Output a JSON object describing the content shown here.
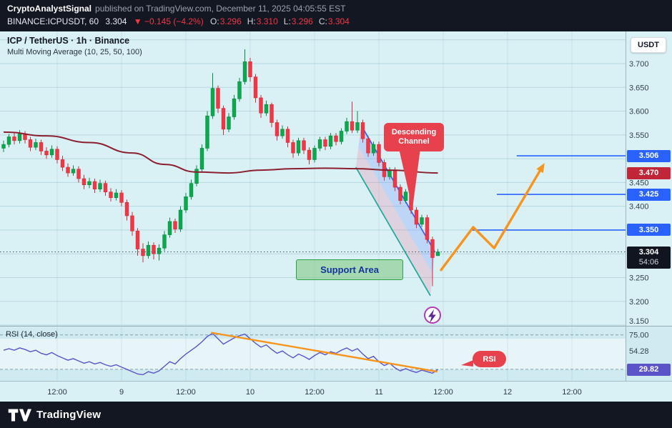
{
  "header": {
    "author": "CryptoAnalystSignal",
    "published_text": "published on TradingView.com, December 11, 2025 04:05:55 EST",
    "symbol": "BINANCE:ICPUSDT, 60",
    "last_price": "3.304",
    "change": "▼ −0.145 (−4.2%)",
    "ohlc": [
      {
        "label": "O",
        "value": "3.296"
      },
      {
        "label": "H",
        "value": "3.310"
      },
      {
        "label": "L",
        "value": "3.296"
      },
      {
        "label": "C",
        "value": "3.304"
      }
    ]
  },
  "legend": {
    "title": "ICP / TetherUS · 1h · Binance",
    "indicator": "Multi Moving Average (10, 25, 50, 100)"
  },
  "price_scale": {
    "currency_button": "USDT",
    "ticks": [
      "3.700",
      "3.650",
      "3.600",
      "3.550",
      "3.450",
      "3.400",
      "3.250",
      "3.200",
      "3.150"
    ],
    "flags": [
      {
        "name": "level-3506",
        "text": "3.506",
        "price": 3.506,
        "bg": "#2962ff"
      },
      {
        "name": "ma-value",
        "text": "3.470",
        "price": 3.47,
        "bg": "#c02638"
      },
      {
        "name": "level-3425",
        "text": "3.425",
        "price": 3.425,
        "bg": "#2962ff"
      },
      {
        "name": "level-3350",
        "text": "3.350",
        "price": 3.35,
        "bg": "#2962ff"
      },
      {
        "name": "last-price",
        "text": "3.304",
        "price": 3.304,
        "bg": "#10151f",
        "countdown": "54:06"
      }
    ]
  },
  "annotations": {
    "channel_label_line1": "Descending",
    "channel_label_line2": "Channel",
    "support_label": "Support Area",
    "rsi_flag": "RSI"
  },
  "rsi_pane": {
    "legend": "RSI (14, close)",
    "ticks": [
      {
        "text": "75.00",
        "value": 75
      },
      {
        "text": "54.28",
        "value": 54.28
      }
    ],
    "current": {
      "text": "29.82",
      "value": 29.82
    }
  },
  "time_axis": [
    "12:00",
    "9",
    "12:00",
    "10",
    "12:00",
    "11",
    "12:00",
    "12",
    "12:00"
  ],
  "footer": {
    "brand": "TradingView"
  },
  "colors": {
    "up": "#0ba94e",
    "up_border": "#078a42",
    "down": "#f23645",
    "down_border": "#cf2b39",
    "ma": "#8c1f2f",
    "level": "#2962ff",
    "orange": "#f7941d",
    "rsi_line": "#5b54c8",
    "channel_upper": "#2962ff",
    "channel_lower": "#1fa89a",
    "callout_red": "#e8414e"
  },
  "chart_data": {
    "type": "candlestick",
    "title": "ICP / TetherUS · 1h · Binance",
    "indicator": "Multi Moving Average (10, 25, 50, 100)",
    "price_axis_range": [
      3.135,
      3.768
    ],
    "grid_step": 0.05,
    "time_ticks": [
      "12:00",
      "9",
      "12:00",
      "10",
      "12:00",
      "11",
      "12:00",
      "12",
      "12:00"
    ],
    "current_price": 3.304,
    "countdown": "54:06",
    "candles_ohlc": [
      [
        3.522,
        3.538,
        3.514,
        3.53
      ],
      [
        3.53,
        3.552,
        3.524,
        3.546
      ],
      [
        3.546,
        3.554,
        3.53,
        3.538
      ],
      [
        3.538,
        3.56,
        3.532,
        3.552
      ],
      [
        3.552,
        3.558,
        3.532,
        3.54
      ],
      [
        3.54,
        3.546,
        3.516,
        3.524
      ],
      [
        3.524,
        3.542,
        3.518,
        3.534
      ],
      [
        3.534,
        3.54,
        3.508,
        3.516
      ],
      [
        3.516,
        3.524,
        3.5,
        3.508
      ],
      [
        3.508,
        3.528,
        3.502,
        3.52
      ],
      [
        3.52,
        3.526,
        3.49,
        3.498
      ],
      [
        3.498,
        3.506,
        3.474,
        3.482
      ],
      [
        3.482,
        3.49,
        3.462,
        3.47
      ],
      [
        3.47,
        3.486,
        3.464,
        3.478
      ],
      [
        3.478,
        3.484,
        3.45,
        3.458
      ],
      [
        3.458,
        3.466,
        3.436,
        3.445
      ],
      [
        3.445,
        3.46,
        3.438,
        3.452
      ],
      [
        3.452,
        3.458,
        3.428,
        3.436
      ],
      [
        3.436,
        3.456,
        3.43,
        3.448
      ],
      [
        3.448,
        3.454,
        3.422,
        3.43
      ],
      [
        3.43,
        3.438,
        3.41,
        3.418
      ],
      [
        3.418,
        3.436,
        3.412,
        3.428
      ],
      [
        3.428,
        3.434,
        3.4,
        3.408
      ],
      [
        3.408,
        3.414,
        3.37,
        3.38
      ],
      [
        3.38,
        3.388,
        3.338,
        3.348
      ],
      [
        3.348,
        3.354,
        3.296,
        3.31
      ],
      [
        3.31,
        3.322,
        3.282,
        3.296
      ],
      [
        3.296,
        3.326,
        3.29,
        3.318
      ],
      [
        3.318,
        3.324,
        3.288,
        3.3
      ],
      [
        3.3,
        3.32,
        3.286,
        3.312
      ],
      [
        3.312,
        3.348,
        3.306,
        3.34
      ],
      [
        3.34,
        3.376,
        3.334,
        3.368
      ],
      [
        3.368,
        3.374,
        3.344,
        3.352
      ],
      [
        3.352,
        3.4,
        3.346,
        3.392
      ],
      [
        3.392,
        3.428,
        3.386,
        3.42
      ],
      [
        3.42,
        3.456,
        3.414,
        3.448
      ],
      [
        3.448,
        3.486,
        3.442,
        3.478
      ],
      [
        3.478,
        3.53,
        3.472,
        3.522
      ],
      [
        3.522,
        3.6,
        3.516,
        3.59
      ],
      [
        3.59,
        3.68,
        3.584,
        3.648
      ],
      [
        3.648,
        3.654,
        3.596,
        3.606
      ],
      [
        3.606,
        3.612,
        3.55,
        3.562
      ],
      [
        3.562,
        3.596,
        3.556,
        3.588
      ],
      [
        3.588,
        3.634,
        3.582,
        3.626
      ],
      [
        3.626,
        3.67,
        3.62,
        3.662
      ],
      [
        3.662,
        3.73,
        3.656,
        3.704
      ],
      [
        3.704,
        3.712,
        3.662,
        3.672
      ],
      [
        3.672,
        3.678,
        3.618,
        3.628
      ],
      [
        3.628,
        3.634,
        3.586,
        3.596
      ],
      [
        3.596,
        3.622,
        3.59,
        3.614
      ],
      [
        3.614,
        3.618,
        3.566,
        3.576
      ],
      [
        3.576,
        3.582,
        3.538,
        3.548
      ],
      [
        3.548,
        3.57,
        3.542,
        3.562
      ],
      [
        3.562,
        3.568,
        3.524,
        3.534
      ],
      [
        3.534,
        3.54,
        3.502,
        3.512
      ],
      [
        3.512,
        3.544,
        3.506,
        3.538
      ],
      [
        3.538,
        3.544,
        3.51,
        3.518
      ],
      [
        3.518,
        3.524,
        3.488,
        3.498
      ],
      [
        3.498,
        3.528,
        3.492,
        3.522
      ],
      [
        3.522,
        3.546,
        3.516,
        3.54
      ],
      [
        3.54,
        3.546,
        3.518,
        3.526
      ],
      [
        3.526,
        3.554,
        3.52,
        3.548
      ],
      [
        3.548,
        3.554,
        3.528,
        3.536
      ],
      [
        3.536,
        3.564,
        3.53,
        3.558
      ],
      [
        3.558,
        3.586,
        3.552,
        3.578
      ],
      [
        3.578,
        3.62,
        3.554,
        3.56
      ],
      [
        3.56,
        3.6,
        3.554,
        3.576
      ],
      [
        3.576,
        3.582,
        3.534,
        3.542
      ],
      [
        3.542,
        3.548,
        3.504,
        3.512
      ],
      [
        3.512,
        3.536,
        3.506,
        3.53
      ],
      [
        3.53,
        3.536,
        3.484,
        3.492
      ],
      [
        3.492,
        3.498,
        3.454,
        3.462
      ],
      [
        3.462,
        3.482,
        3.456,
        3.476
      ],
      [
        3.476,
        3.482,
        3.432,
        3.44
      ],
      [
        3.44,
        3.446,
        3.404,
        3.412
      ],
      [
        3.412,
        3.436,
        3.406,
        3.43
      ],
      [
        3.43,
        3.436,
        3.384,
        3.392
      ],
      [
        3.392,
        3.398,
        3.354,
        3.362
      ],
      [
        3.362,
        3.382,
        3.356,
        3.376
      ],
      [
        3.376,
        3.382,
        3.322,
        3.33
      ],
      [
        3.33,
        3.336,
        3.232,
        3.292
      ],
      [
        3.296,
        3.31,
        3.296,
        3.304
      ]
    ],
    "ma_points": [
      [
        0,
        3.556
      ],
      [
        8,
        3.548
      ],
      [
        16,
        3.534
      ],
      [
        24,
        3.512
      ],
      [
        30,
        3.488
      ],
      [
        36,
        3.472
      ],
      [
        42,
        3.47
      ],
      [
        48,
        3.476
      ],
      [
        54,
        3.479
      ],
      [
        60,
        3.48
      ],
      [
        66,
        3.479
      ],
      [
        72,
        3.476
      ],
      [
        81,
        3.47
      ]
    ],
    "levels": [
      {
        "price": 3.506,
        "start_i": 95.7
      },
      {
        "price": 3.425,
        "start_i": 92.0
      },
      {
        "price": 3.35,
        "start_i": 87.0
      }
    ],
    "channel": {
      "upper": [
        [
          66.7,
          3.57
        ],
        [
          80.4,
          3.305
        ]
      ],
      "lower": [
        [
          65.7,
          3.482
        ],
        [
          79.6,
          3.212
        ]
      ]
    },
    "support_box": {
      "i0": 54.7,
      "i1": 74.0,
      "p_top": 3.292,
      "p_bottom": 3.246
    },
    "projection_path": [
      [
        81.6,
        3.266
      ],
      [
        87.6,
        3.356
      ],
      [
        91.5,
        3.312
      ],
      [
        100.9,
        3.491
      ]
    ],
    "lightning": {
      "i": 80.0,
      "price": 3.171
    },
    "rsi": {
      "values": [
        55,
        57,
        55,
        58,
        56,
        53,
        55,
        51,
        49,
        52,
        48,
        45,
        42,
        44,
        41,
        38,
        40,
        37,
        39,
        36,
        34,
        36,
        33,
        30,
        27,
        24,
        23,
        27,
        25,
        28,
        34,
        40,
        37,
        44,
        50,
        55,
        60,
        66,
        73,
        77,
        70,
        63,
        67,
        71,
        74,
        76,
        70,
        64,
        59,
        62,
        56,
        51,
        54,
        49,
        45,
        50,
        47,
        43,
        48,
        52,
        49,
        53,
        51,
        55,
        58,
        54,
        57,
        50,
        44,
        47,
        40,
        35,
        38,
        32,
        28,
        31,
        28,
        26,
        29,
        27,
        25,
        29.82
      ],
      "range": [
        15,
        85
      ],
      "dashed_levels": [
        75,
        30
      ],
      "trendline": [
        [
          38.7,
          78
        ],
        [
          80.9,
          27
        ]
      ]
    }
  }
}
